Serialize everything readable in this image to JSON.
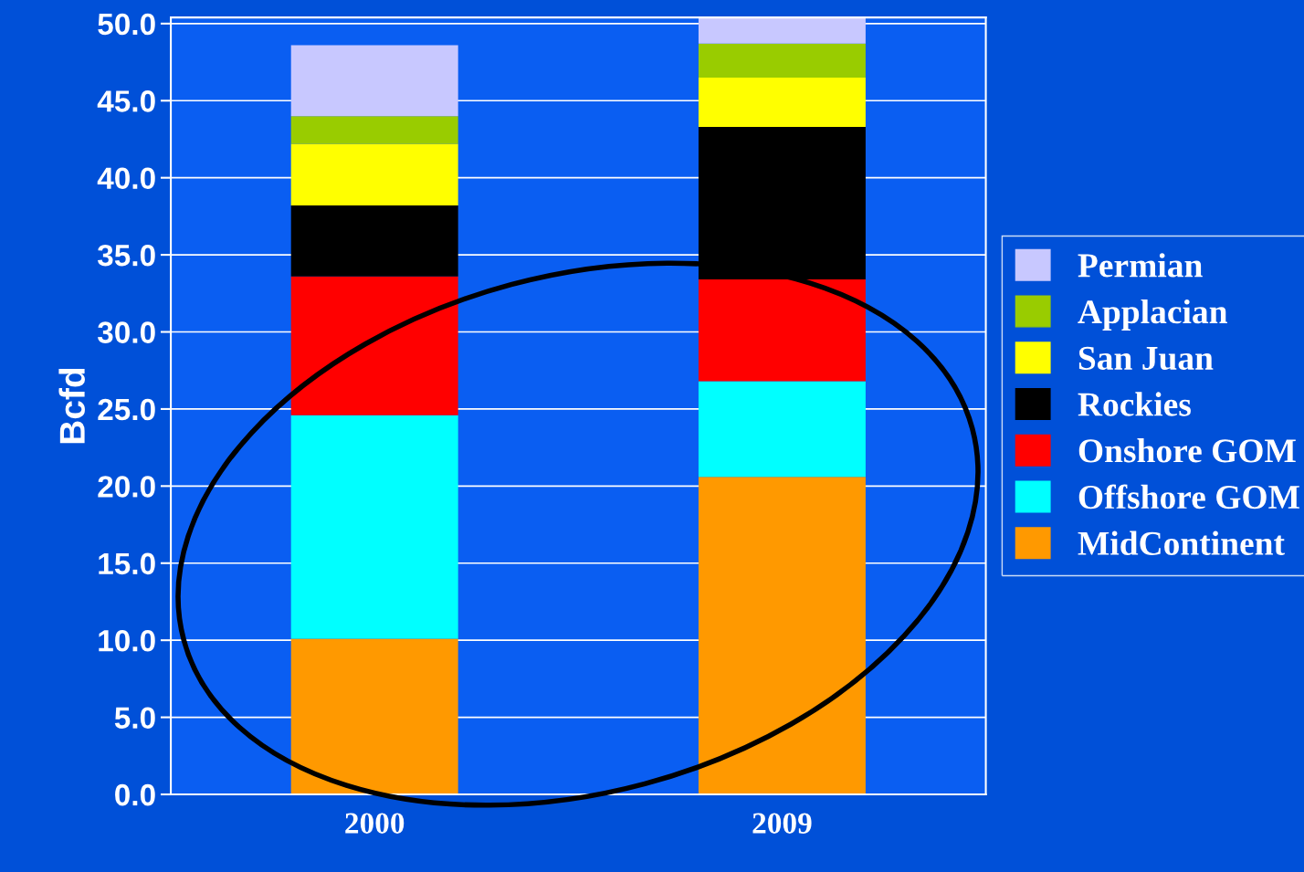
{
  "chart_data": {
    "type": "bar",
    "stacked": true,
    "ylabel": "Bcfd",
    "categories": [
      "2000",
      "2009"
    ],
    "series": [
      {
        "name": "MidContinent",
        "color": "#ff9900",
        "values": [
          10.1,
          20.6
        ]
      },
      {
        "name": "Offshore GOM",
        "color": "#00ffff",
        "values": [
          14.5,
          6.2
        ]
      },
      {
        "name": "Onshore GOM",
        "color": "#ff0000",
        "values": [
          9.0,
          6.6
        ]
      },
      {
        "name": "Rockies",
        "color": "#000000",
        "values": [
          4.6,
          9.9
        ]
      },
      {
        "name": "San Juan",
        "color": "#ffff00",
        "values": [
          4.0,
          3.2
        ]
      },
      {
        "name": "Applacian",
        "color": "#99cc00",
        "values": [
          1.8,
          2.2
        ]
      },
      {
        "name": "Permian",
        "color": "#c8c8ff",
        "values": [
          4.6,
          1.7
        ]
      }
    ],
    "ylim": [
      0,
      50.4
    ],
    "yticks": [
      {
        "value": 0,
        "label": "0.0"
      },
      {
        "value": 5,
        "label": "5.0"
      },
      {
        "value": 10,
        "label": "10.0"
      },
      {
        "value": 15,
        "label": "15.0"
      },
      {
        "value": 20,
        "label": "20.0"
      },
      {
        "value": 25,
        "label": "25.0"
      },
      {
        "value": 30,
        "label": "30.0"
      },
      {
        "value": 35,
        "label": "35.0"
      },
      {
        "value": 40,
        "label": "40.0"
      },
      {
        "value": 45,
        "label": "45.0"
      },
      {
        "value": 50,
        "label": "50.0"
      }
    ],
    "grid": "y",
    "legend": "right"
  }
}
